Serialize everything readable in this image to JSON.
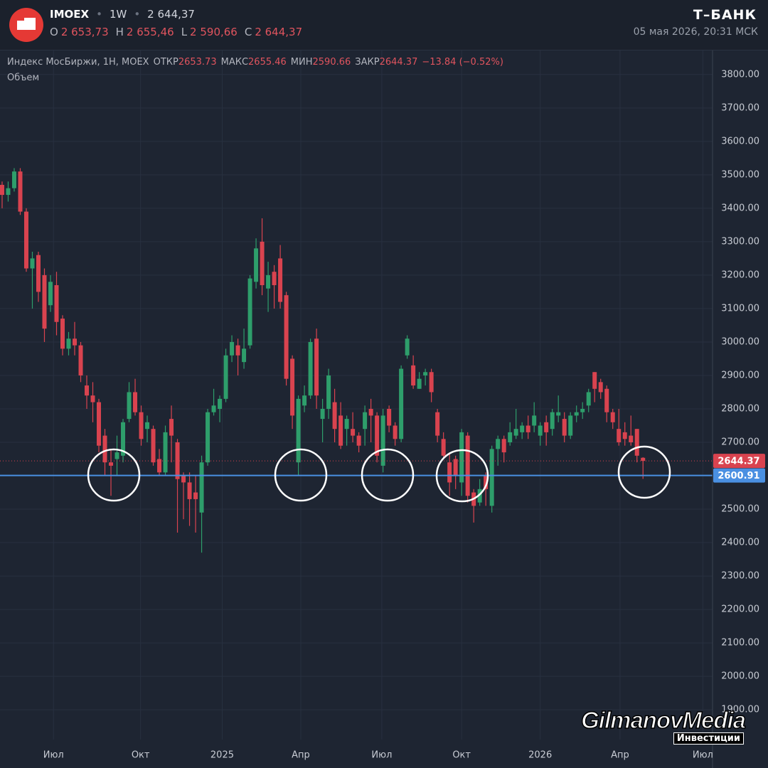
{
  "header": {
    "symbol": "IMOEX",
    "interval": "1W",
    "price": "2 644,37",
    "ohlc": [
      {
        "label": "O",
        "value": "2 653,73"
      },
      {
        "label": "H",
        "value": "2 655,46"
      },
      {
        "label": "L",
        "value": "2 590,66"
      },
      {
        "label": "C",
        "value": "2 644,37"
      }
    ],
    "brand": "Т–БАНК",
    "datetime": "05 мая 2026, 20:31 МСК"
  },
  "legend": {
    "name": "Индекс МосБиржи, 1Н, MOEX",
    "items": [
      {
        "label": "ОТКР",
        "value": "2653.73"
      },
      {
        "label": "МАКС",
        "value": "2655.46"
      },
      {
        "label": "МИН",
        "value": "2590.66"
      },
      {
        "label": "ЗАКР",
        "value": "2644.37"
      }
    ],
    "change": "−13.84 (−0.52%)",
    "volume": "Объем"
  },
  "watermark": {
    "main": "GilmanovMedia",
    "sub": "Инвестиции"
  },
  "chart_data": {
    "type": "candlestick",
    "up_color": "#2e9e6b",
    "down_color": "#d9434f",
    "grid": true,
    "x": [
      0,
      1,
      2,
      3,
      4,
      5,
      6,
      7,
      8,
      9,
      10,
      11,
      12,
      13,
      14,
      15,
      16,
      17,
      18,
      19,
      20,
      21,
      22,
      23,
      24,
      25,
      26,
      27,
      28,
      29,
      30,
      31,
      32,
      33,
      34,
      35,
      36,
      37,
      38,
      39,
      40,
      41,
      42,
      43,
      44,
      45,
      46,
      47,
      48,
      49,
      50,
      51,
      52,
      53,
      54,
      55,
      56,
      57,
      58,
      59,
      60,
      61,
      62,
      63,
      64,
      65,
      66,
      67,
      68,
      69,
      70,
      71,
      72,
      73,
      74,
      75,
      76,
      77,
      78,
      79,
      80,
      81,
      82,
      83,
      84,
      85,
      86,
      87,
      88,
      89,
      90,
      91,
      92,
      93,
      94,
      95,
      96,
      97,
      98,
      99,
      100,
      101,
      102,
      103,
      104,
      105,
      106
    ],
    "open": [
      3470,
      3440,
      3460,
      3510,
      3390,
      3220,
      3260,
      3200,
      3110,
      3170,
      3070,
      2980,
      3010,
      2990,
      2870,
      2840,
      2820,
      2720,
      2640,
      2650,
      2660,
      2770,
      2850,
      2790,
      2740,
      2740,
      2650,
      2610,
      2770,
      2700,
      2600,
      2580,
      2550,
      2490,
      2640,
      2790,
      2800,
      2830,
      2960,
      2990,
      2940,
      2990,
      3180,
      3300,
      3160,
      3210,
      3250,
      3140,
      2950,
      2640,
      2810,
      2840,
      3010,
      2770,
      2800,
      2820,
      2780,
      2740,
      2740,
      2720,
      2740,
      2800,
      2780,
      2630,
      2800,
      2750,
      2710,
      2960,
      2930,
      2860,
      2900,
      2910,
      2790,
      2710,
      2640,
      2650,
      2580,
      2720,
      2550,
      2520,
      2600,
      2510,
      2680,
      2710,
      2700,
      2720,
      2730,
      2750,
      2750,
      2720,
      2760,
      2740,
      2780,
      2770,
      2720,
      2780,
      2790,
      2810,
      2910,
      2880,
      2860,
      2790,
      2740,
      2730,
      2720,
      2740,
      2653.73
    ],
    "high": [
      3480,
      3480,
      3520,
      3520,
      3400,
      3270,
      3270,
      3220,
      3200,
      3210,
      3080,
      3030,
      3060,
      3000,
      2900,
      2880,
      2830,
      2740,
      2680,
      2720,
      2770,
      2880,
      2890,
      2810,
      2780,
      2750,
      2680,
      2750,
      2810,
      2710,
      2610,
      2610,
      2600,
      2660,
      2800,
      2860,
      2840,
      2980,
      3020,
      3010,
      3040,
      3200,
      3310,
      3370,
      3240,
      3230,
      3290,
      3150,
      2960,
      2840,
      2870,
      3010,
      3040,
      2830,
      2920,
      2860,
      2820,
      2780,
      2790,
      2730,
      2810,
      2830,
      2790,
      2800,
      2810,
      2760,
      2930,
      3020,
      2960,
      2910,
      2920,
      2920,
      2800,
      2730,
      2670,
      2660,
      2740,
      2730,
      2560,
      2590,
      2610,
      2690,
      2720,
      2720,
      2760,
      2800,
      2760,
      2780,
      2820,
      2760,
      2780,
      2800,
      2840,
      2790,
      2790,
      2810,
      2820,
      2860,
      2910,
      2890,
      2870,
      2800,
      2800,
      2760,
      2780,
      2740,
      2655.46
    ],
    "low": [
      3400,
      3420,
      3450,
      3380,
      3210,
      3100,
      3120,
      3000,
      3090,
      3020,
      2960,
      2960,
      2960,
      2880,
      2800,
      2760,
      2670,
      2600,
      2540,
      2600,
      2640,
      2760,
      2780,
      2690,
      2700,
      2630,
      2600,
      2600,
      2640,
      2430,
      2470,
      2450,
      2430,
      2370,
      2630,
      2780,
      2760,
      2820,
      2940,
      2900,
      2920,
      2980,
      3160,
      3140,
      3090,
      3100,
      3100,
      2870,
      2740,
      2600,
      2790,
      2830,
      2800,
      2700,
      2770,
      2700,
      2680,
      2690,
      2700,
      2670,
      2690,
      2700,
      2640,
      2610,
      2730,
      2690,
      2700,
      2950,
      2860,
      2860,
      2870,
      2820,
      2700,
      2650,
      2540,
      2560,
      2540,
      2520,
      2460,
      2510,
      2510,
      2490,
      2630,
      2640,
      2690,
      2710,
      2710,
      2710,
      2730,
      2690,
      2690,
      2720,
      2760,
      2700,
      2710,
      2760,
      2770,
      2790,
      2820,
      2830,
      2760,
      2740,
      2690,
      2690,
      2690,
      2640,
      2590.66
    ],
    "close": [
      3440,
      3460,
      3510,
      3390,
      3220,
      3250,
      3150,
      3040,
      3180,
      3060,
      2980,
      3010,
      2990,
      2900,
      2840,
      2820,
      2690,
      2640,
      2630,
      2670,
      2760,
      2850,
      2790,
      2710,
      2760,
      2640,
      2610,
      2730,
      2720,
      2590,
      2580,
      2530,
      2530,
      2640,
      2790,
      2810,
      2830,
      2960,
      3000,
      2960,
      2980,
      3190,
      3280,
      3170,
      3200,
      3170,
      3120,
      2890,
      2780,
      2830,
      2840,
      3000,
      2840,
      2800,
      2900,
      2740,
      2690,
      2770,
      2720,
      2690,
      2790,
      2780,
      2660,
      2780,
      2750,
      2710,
      2920,
      3010,
      2870,
      2890,
      2910,
      2850,
      2720,
      2660,
      2580,
      2600,
      2730,
      2540,
      2510,
      2560,
      2560,
      2680,
      2710,
      2670,
      2730,
      2740,
      2750,
      2730,
      2780,
      2750,
      2730,
      2790,
      2790,
      2720,
      2780,
      2790,
      2800,
      2850,
      2860,
      2850,
      2790,
      2760,
      2700,
      2710,
      2700,
      2660,
      2644.37
    ],
    "xlim": [
      -0.35,
      117.5
    ],
    "ylim": [
      1811,
      3874
    ],
    "xticks": [
      {
        "value": 8.5,
        "label": "Июл"
      },
      {
        "value": 22.9,
        "label": "Окт"
      },
      {
        "value": 36.4,
        "label": "2025"
      },
      {
        "value": 49.4,
        "label": "Апр"
      },
      {
        "value": 62.8,
        "label": "Июл"
      },
      {
        "value": 76,
        "label": "Окт"
      },
      {
        "value": 89,
        "label": "2026"
      },
      {
        "value": 102.2,
        "label": "Апр"
      },
      {
        "value": 115.9,
        "label": "Июл"
      }
    ],
    "yticks": [
      {
        "value": 1900,
        "label": "1900.00"
      },
      {
        "value": 2000,
        "label": "2000.00"
      },
      {
        "value": 2100,
        "label": "2100.00"
      },
      {
        "value": 2200,
        "label": "2200.00"
      },
      {
        "value": 2300,
        "label": "2300.00"
      },
      {
        "value": 2400,
        "label": "2400.00"
      },
      {
        "value": 2500,
        "label": "2500.00"
      },
      {
        "value": 2600,
        "label": "2600.00"
      },
      {
        "value": 2700,
        "label": "2700.00"
      },
      {
        "value": 2800,
        "label": "2800.00"
      },
      {
        "value": 2900,
        "label": "2900.00"
      },
      {
        "value": 3000,
        "label": "3000.00"
      },
      {
        "value": 3100,
        "label": "3100.00"
      },
      {
        "value": 3200,
        "label": "3200.00"
      },
      {
        "value": 3300,
        "label": "3300.00"
      },
      {
        "value": 3400,
        "label": "3400.00"
      },
      {
        "value": 3500,
        "label": "3500.00"
      },
      {
        "value": 3600,
        "label": "3600.00"
      },
      {
        "value": 3700,
        "label": "3700.00"
      },
      {
        "value": 3800,
        "label": "3800.00"
      }
    ],
    "price_lines": [
      {
        "value": 2644.37,
        "label": "2644.37",
        "color": "#d9434f",
        "style": "dotted"
      },
      {
        "value": 2600.91,
        "label": "2600.91",
        "color": "#4a90e2",
        "style": "solid"
      }
    ]
  }
}
